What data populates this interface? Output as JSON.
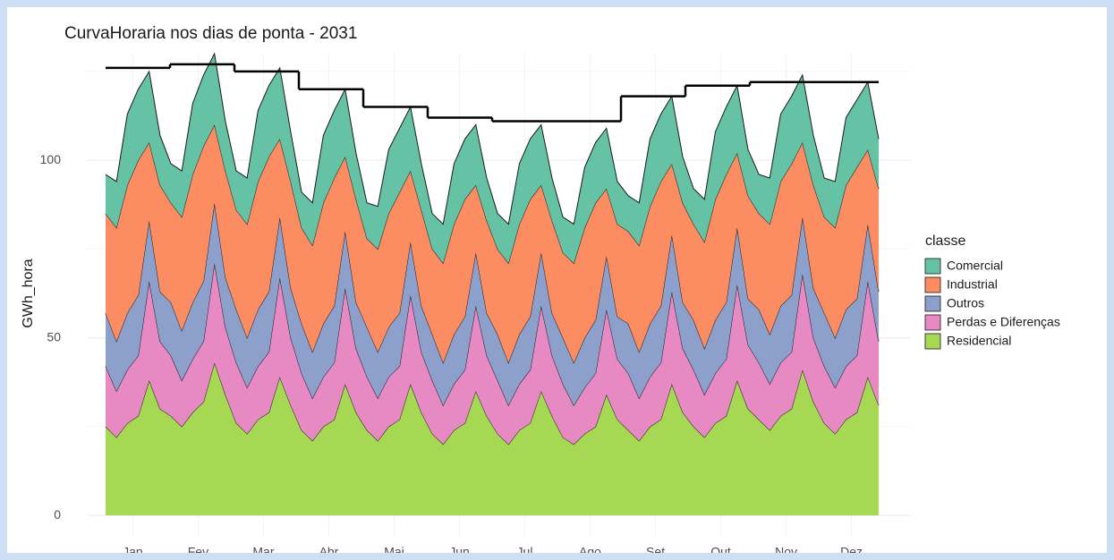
{
  "chart_data": {
    "type": "stacked_area",
    "title": "CurvaHoraria nos dias de ponta - 2031",
    "y_label": "GWh_hora",
    "legend_title": "classe",
    "legend_position": "right",
    "grid": true,
    "categories": [
      null,
      null,
      "Jan",
      null,
      null,
      null,
      null,
      null,
      "Fev",
      null,
      null,
      null,
      null,
      null,
      "Mar",
      null,
      null,
      null,
      null,
      null,
      "Abr",
      null,
      null,
      null,
      null,
      null,
      "Mai",
      null,
      null,
      null,
      null,
      null,
      "Jun",
      null,
      null,
      null,
      null,
      null,
      "Jul",
      null,
      null,
      null,
      null,
      null,
      "Ago",
      null,
      null,
      null,
      null,
      null,
      "Set",
      null,
      null,
      null,
      null,
      null,
      "Out",
      null,
      null,
      null,
      null,
      null,
      "Nov",
      null,
      null,
      null,
      null,
      null,
      "Dez",
      null,
      null,
      null
    ],
    "ylim": [
      -6,
      130
    ],
    "yticks": [
      0,
      50,
      100
    ],
    "minor_yticks": [
      25,
      75,
      125
    ],
    "series": [
      {
        "name": "Comercial",
        "color": "#66c2a5",
        "values": [
          11,
          13,
          20,
          20,
          20,
          14,
          11,
          13,
          20,
          20,
          20,
          14,
          11,
          13,
          20,
          20,
          20,
          14,
          10,
          12,
          19,
          19,
          19,
          13,
          10,
          12,
          18,
          18,
          18,
          13,
          10,
          11,
          17,
          17,
          17,
          12,
          10,
          11,
          17,
          17,
          17,
          12,
          10,
          11,
          17,
          17,
          17,
          12,
          10,
          12,
          19,
          19,
          19,
          13,
          10,
          12,
          19,
          19,
          19,
          13,
          11,
          13,
          19,
          19,
          19,
          14,
          11,
          13,
          19,
          19,
          19,
          14
        ]
      },
      {
        "name": "Industrial",
        "color": "#fc8d62",
        "values": [
          28,
          32,
          36,
          38,
          22,
          30,
          28,
          32,
          36,
          38,
          22,
          30,
          28,
          32,
          36,
          38,
          22,
          30,
          27,
          30,
          34,
          36,
          21,
          29,
          25,
          29,
          32,
          34,
          20,
          27,
          24,
          28,
          31,
          33,
          19,
          26,
          24,
          28,
          31,
          33,
          19,
          26,
          24,
          28,
          31,
          33,
          19,
          26,
          26,
          30,
          33,
          35,
          20,
          28,
          27,
          30,
          34,
          36,
          21,
          29,
          27,
          31,
          35,
          37,
          21,
          29,
          27,
          31,
          35,
          37,
          21,
          29
        ]
      },
      {
        "name": "Outros",
        "color": "#8da0cb",
        "values": [
          15,
          14,
          16,
          17,
          17,
          14,
          15,
          14,
          16,
          17,
          17,
          14,
          15,
          14,
          16,
          17,
          17,
          14,
          14,
          13,
          15,
          16,
          16,
          13,
          14,
          13,
          14,
          15,
          15,
          13,
          13,
          12,
          14,
          15,
          15,
          12,
          13,
          12,
          14,
          15,
          15,
          12,
          13,
          12,
          14,
          15,
          15,
          12,
          14,
          13,
          15,
          16,
          16,
          13,
          14,
          13,
          15,
          16,
          16,
          13,
          15,
          14,
          16,
          16,
          16,
          14,
          15,
          14,
          16,
          16,
          16,
          14
        ]
      },
      {
        "name": "Perdas e Diferenças",
        "color": "#e78ac3",
        "values": [
          17,
          13,
          15,
          17,
          28,
          19,
          17,
          13,
          15,
          17,
          28,
          19,
          17,
          13,
          15,
          17,
          28,
          19,
          16,
          12,
          14,
          16,
          27,
          18,
          15,
          12,
          14,
          15,
          25,
          17,
          15,
          11,
          13,
          15,
          24,
          17,
          15,
          11,
          13,
          15,
          24,
          17,
          15,
          11,
          13,
          15,
          24,
          17,
          16,
          12,
          14,
          16,
          26,
          18,
          16,
          12,
          14,
          16,
          27,
          18,
          16,
          13,
          15,
          16,
          27,
          18,
          16,
          13,
          15,
          16,
          27,
          18
        ]
      },
      {
        "name": "Residencial",
        "color": "#a6d854",
        "values": [
          25,
          22,
          26,
          28,
          38,
          30,
          28,
          25,
          29,
          32,
          43,
          34,
          26,
          23,
          27,
          29,
          39,
          31,
          24,
          21,
          25,
          27,
          37,
          29,
          24,
          21,
          25,
          27,
          37,
          29,
          23,
          20,
          24,
          26,
          35,
          28,
          23,
          20,
          24,
          26,
          35,
          28,
          22,
          20,
          23,
          25,
          34,
          27,
          24,
          21,
          25,
          27,
          37,
          29,
          25,
          22,
          26,
          28,
          38,
          30,
          27,
          24,
          28,
          30,
          41,
          32,
          26,
          23,
          27,
          29,
          39,
          31
        ]
      }
    ],
    "peak_line": {
      "color": "#000000",
      "values": [
        126,
        127,
        125,
        120,
        115,
        112,
        111,
        111,
        118,
        121,
        122,
        122
      ]
    }
  }
}
